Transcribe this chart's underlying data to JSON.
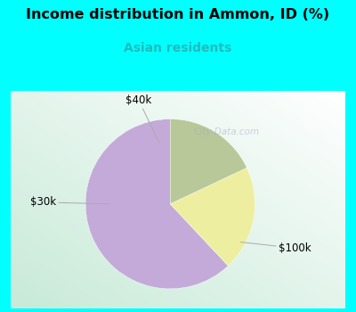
{
  "title": "Income distribution in Ammon, ID (%)",
  "subtitle": "Asian residents",
  "title_color": "#000000",
  "subtitle_color": "#22bbbb",
  "top_bg_color": "#00ffff",
  "chart_bg_top_left": "#c8ead8",
  "chart_bg_bottom_right": "#f0f8ff",
  "slices": [
    {
      "label": "$100k",
      "value": 62,
      "color": "#c4aad8"
    },
    {
      "label": "$40k",
      "value": 20,
      "color": "#eeeea0"
    },
    {
      "label": "$30k",
      "value": 18,
      "color": "#b8c898"
    }
  ],
  "startangle": 90,
  "watermark": "City-Data.com",
  "label_fontsize": 8.5
}
